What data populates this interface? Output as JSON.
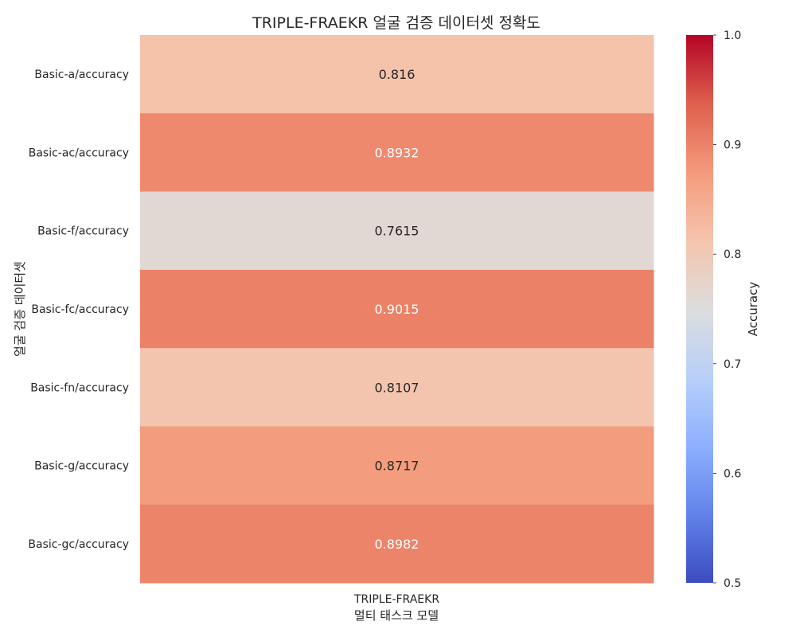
{
  "chart_data": {
    "type": "heatmap",
    "title": "TRIPLE-FRAEKR 얼굴 검증 데이터셋 정확도",
    "xlabel": "멀티 태스크 모델",
    "ylabel": "얼굴 검증 데이터셋",
    "columns": [
      "TRIPLE-FRAEKR"
    ],
    "rows": [
      "Basic-a/accuracy",
      "Basic-ac/accuracy",
      "Basic-f/accuracy",
      "Basic-fc/accuracy",
      "Basic-fn/accuracy",
      "Basic-g/accuracy",
      "Basic-gc/accuracy"
    ],
    "values": [
      [
        0.816
      ],
      [
        0.8932
      ],
      [
        0.7615
      ],
      [
        0.9015
      ],
      [
        0.8107
      ],
      [
        0.8717
      ],
      [
        0.8982
      ]
    ],
    "value_labels": [
      "0.816",
      "0.8932",
      "0.7615",
      "0.9015",
      "0.8107",
      "0.8717",
      "0.8982"
    ],
    "colormap": "coolwarm",
    "vmin": 0.5,
    "vmax": 1.0,
    "colorbar": {
      "label": "Accuracy",
      "ticks": [
        0.5,
        0.6,
        0.7,
        0.8,
        0.9,
        1.0
      ],
      "tick_labels": [
        "0.5",
        "0.6",
        "0.7",
        "0.8",
        "0.9",
        "1.0"
      ]
    },
    "grid": false,
    "legend": "colorbar-right"
  }
}
